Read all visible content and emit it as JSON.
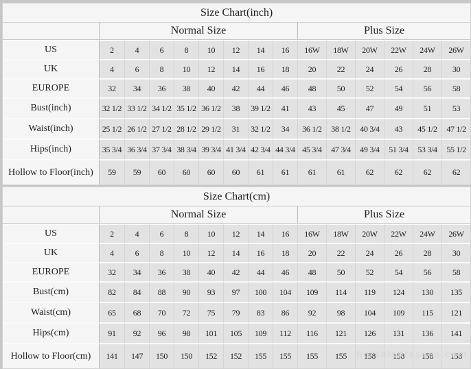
{
  "colors": {
    "page_bg": "#c7c7c7",
    "panel_bg": "#f5f5f5",
    "value_cell_bg": "#e2e2e2",
    "text": "#1e1e1e"
  },
  "watermark": {
    "text": "hotsaledresses.com"
  },
  "charts": [
    {
      "title": "Size Chart(inch)",
      "normal_header": "Normal Size",
      "plus_header": "Plus Size",
      "rows": [
        {
          "label": "US",
          "normal": [
            "2",
            "4",
            "6",
            "8",
            "10",
            "12",
            "14",
            "16"
          ],
          "plus": [
            "16W",
            "18W",
            "20W",
            "22W",
            "24W",
            "26W"
          ]
        },
        {
          "label": "UK",
          "normal": [
            "4",
            "6",
            "8",
            "10",
            "12",
            "14",
            "16",
            "18"
          ],
          "plus": [
            "20",
            "22",
            "24",
            "26",
            "28",
            "30"
          ]
        },
        {
          "label": "EUROPE",
          "normal": [
            "32",
            "34",
            "36",
            "38",
            "40",
            "42",
            "44",
            "46"
          ],
          "plus": [
            "48",
            "50",
            "52",
            "54",
            "56",
            "58"
          ]
        },
        {
          "label": "Bust(inch)",
          "normal": [
            "32 1/2",
            "33 1/2",
            "34 1/2",
            "35 1/2",
            "36 1/2",
            "38",
            "39 1/2",
            "41"
          ],
          "plus": [
            "43",
            "45",
            "47",
            "49",
            "51",
            "53"
          ]
        },
        {
          "label": "Waist(inch)",
          "normal": [
            "25 1/2",
            "26 1/2",
            "27 1/2",
            "28 1/2",
            "29 1/2",
            "31",
            "32 1/2",
            "34"
          ],
          "plus": [
            "36 1/2",
            "38 1/2",
            "40 3/4",
            "43",
            "45 1/2",
            "47 1/2"
          ]
        },
        {
          "label": "Hips(inch)",
          "normal": [
            "35 3/4",
            "36 3/4",
            "37 3/4",
            "38 3/4",
            "39 3/4",
            "41 3/4",
            "42 3/4",
            "44 3/4"
          ],
          "plus": [
            "45 3/4",
            "47 3/4",
            "49 3/4",
            "51 3/4",
            "53 3/4",
            "55 1/2"
          ]
        },
        {
          "label": "Hollow to Floor(inch)",
          "normal": [
            "59",
            "59",
            "60",
            "60",
            "60",
            "60",
            "61",
            "61"
          ],
          "plus": [
            "61",
            "61",
            "62",
            "62",
            "62",
            "62"
          ]
        }
      ]
    },
    {
      "title": "Size Chart(cm)",
      "normal_header": "Normal Size",
      "plus_header": "Plus Size",
      "rows": [
        {
          "label": "US",
          "normal": [
            "2",
            "4",
            "6",
            "8",
            "10",
            "12",
            "14",
            "16"
          ],
          "plus": [
            "16W",
            "18W",
            "20W",
            "22W",
            "24W",
            "26W"
          ]
        },
        {
          "label": "UK",
          "normal": [
            "4",
            "6",
            "8",
            "10",
            "12",
            "14",
            "16",
            "18"
          ],
          "plus": [
            "20",
            "22",
            "24",
            "26",
            "28",
            "30"
          ]
        },
        {
          "label": "EUROPE",
          "normal": [
            "32",
            "34",
            "36",
            "38",
            "40",
            "42",
            "44",
            "46"
          ],
          "plus": [
            "48",
            "50",
            "52",
            "54",
            "56",
            "58"
          ]
        },
        {
          "label": "Bust(cm)",
          "normal": [
            "82",
            "84",
            "88",
            "90",
            "93",
            "97",
            "100",
            "104"
          ],
          "plus": [
            "109",
            "114",
            "119",
            "124",
            "130",
            "135"
          ]
        },
        {
          "label": "Waist(cm)",
          "normal": [
            "65",
            "68",
            "70",
            "72",
            "75",
            "79",
            "83",
            "86"
          ],
          "plus": [
            "92",
            "98",
            "104",
            "109",
            "115",
            "121"
          ]
        },
        {
          "label": "Hips(cm)",
          "normal": [
            "91",
            "92",
            "96",
            "98",
            "101",
            "105",
            "109",
            "112"
          ],
          "plus": [
            "116",
            "121",
            "126",
            "131",
            "136",
            "141"
          ]
        },
        {
          "label": "Hollow to Floor(cm)",
          "normal": [
            "141",
            "147",
            "150",
            "150",
            "152",
            "152",
            "155",
            "155"
          ],
          "plus": [
            "155",
            "155",
            "158",
            "158",
            "158",
            "158"
          ]
        }
      ]
    }
  ]
}
